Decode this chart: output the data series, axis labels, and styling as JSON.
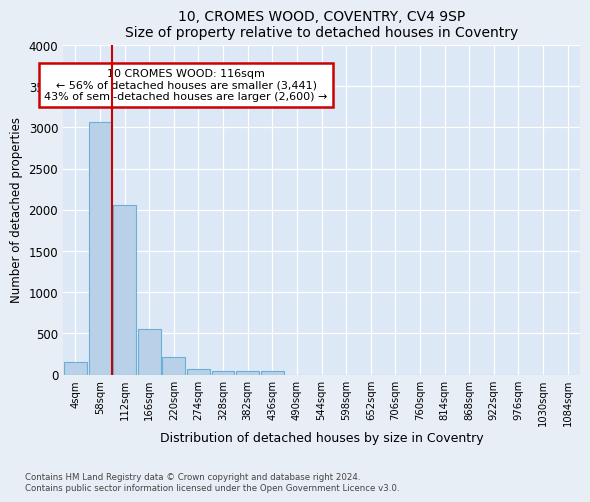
{
  "title": "10, CROMES WOOD, COVENTRY, CV4 9SP",
  "subtitle": "Size of property relative to detached houses in Coventry",
  "xlabel": "Distribution of detached houses by size in Coventry",
  "ylabel": "Number of detached properties",
  "bar_labels": [
    "4sqm",
    "58sqm",
    "112sqm",
    "166sqm",
    "220sqm",
    "274sqm",
    "328sqm",
    "382sqm",
    "436sqm",
    "490sqm",
    "544sqm",
    "598sqm",
    "652sqm",
    "706sqm",
    "760sqm",
    "814sqm",
    "868sqm",
    "922sqm",
    "976sqm",
    "1030sqm",
    "1084sqm"
  ],
  "bar_values": [
    150,
    3070,
    2060,
    560,
    210,
    70,
    45,
    40,
    45,
    0,
    0,
    0,
    0,
    0,
    0,
    0,
    0,
    0,
    0,
    0,
    0
  ],
  "bar_color": "#b8d0e8",
  "bar_edge_color": "#6baed6",
  "vline_color": "#cc0000",
  "ylim": [
    0,
    4000
  ],
  "yticks": [
    0,
    500,
    1000,
    1500,
    2000,
    2500,
    3000,
    3500,
    4000
  ],
  "annotation_text": "10 CROMES WOOD: 116sqm\n← 56% of detached houses are smaller (3,441)\n43% of semi-detached houses are larger (2,600) →",
  "annotation_box_color": "#cc0000",
  "footer_line1": "Contains HM Land Registry data © Crown copyright and database right 2024.",
  "footer_line2": "Contains public sector information licensed under the Open Government Licence v3.0.",
  "bg_color": "#e8eef5",
  "plot_bg_color": "#dce8f5"
}
